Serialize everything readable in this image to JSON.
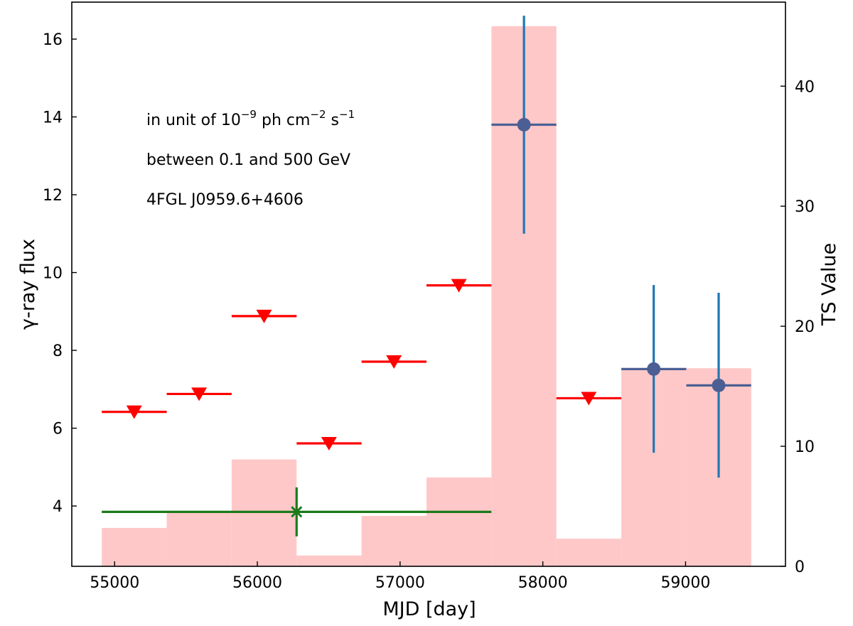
{
  "chart_data": {
    "type": "bar",
    "x_axis": {
      "label": "MJD [day]",
      "range": [
        54700,
        59700
      ],
      "ticks": [
        55000,
        56000,
        57000,
        58000,
        59000
      ],
      "tick_labels": [
        "55000",
        "56000",
        "57000",
        "58000",
        "59000"
      ]
    },
    "y_axis_left": {
      "label": "γ-ray flux",
      "range": [
        2.45,
        16.95
      ],
      "ticks": [
        4,
        6,
        8,
        10,
        12,
        14,
        16
      ],
      "tick_labels": [
        "4",
        "6",
        "8",
        "10",
        "12",
        "14",
        "16"
      ]
    },
    "y_axis_right": {
      "label": "TS Value",
      "range": [
        0,
        47
      ],
      "ticks": [
        0,
        10,
        20,
        30,
        40
      ],
      "tick_labels": [
        "0",
        "10",
        "20",
        "30",
        "40"
      ]
    },
    "annotations": [
      {
        "text_main": "in unit of 10",
        "exp1": "−9",
        "text_mid": " ph cm",
        "exp2": "−2",
        "text_mid2": " s",
        "exp3": "−1"
      },
      {
        "text": "between 0.1 and 500 GeV"
      },
      {
        "text": "4FGL J0959.6+4606"
      }
    ],
    "ts_bars": {
      "axis": "right",
      "color": "#ffc8c8",
      "bins": [
        {
          "x_start": 54910,
          "x_end": 55365,
          "ts": 3.2
        },
        {
          "x_start": 55365,
          "x_end": 55820,
          "ts": 4.6
        },
        {
          "x_start": 55820,
          "x_end": 56275,
          "ts": 8.9
        },
        {
          "x_start": 56275,
          "x_end": 56730,
          "ts": 0.9
        },
        {
          "x_start": 56730,
          "x_end": 57185,
          "ts": 4.2
        },
        {
          "x_start": 57185,
          "x_end": 57640,
          "ts": 7.4
        },
        {
          "x_start": 57640,
          "x_end": 58095,
          "ts": 45.0
        },
        {
          "x_start": 58095,
          "x_end": 58550,
          "ts": 2.3
        },
        {
          "x_start": 58550,
          "x_end": 59005,
          "ts": 16.5
        },
        {
          "x_start": 59005,
          "x_end": 59460,
          "ts": 16.5
        }
      ]
    },
    "upper_limits": {
      "axis": "left",
      "color": "#ff0000",
      "points": [
        {
          "x": 55137,
          "x_start": 54910,
          "x_end": 55365,
          "y": 6.42
        },
        {
          "x": 55592,
          "x_start": 55365,
          "x_end": 55820,
          "y": 6.88
        },
        {
          "x": 56047,
          "x_start": 55820,
          "x_end": 56275,
          "y": 8.88
        },
        {
          "x": 56502,
          "x_start": 56275,
          "x_end": 56730,
          "y": 5.61
        },
        {
          "x": 56957,
          "x_start": 56730,
          "x_end": 57185,
          "y": 7.71
        },
        {
          "x": 57412,
          "x_start": 57185,
          "x_end": 57640,
          "y": 9.67
        },
        {
          "x": 58322,
          "x_start": 58095,
          "x_end": 58550,
          "y": 6.77
        }
      ]
    },
    "detections": {
      "axis": "left",
      "marker_color": "#4b5f94",
      "bar_color": "#1f77b4",
      "points": [
        {
          "x": 57868,
          "x_start": 57640,
          "x_end": 58095,
          "y": 13.8,
          "y_low": 11.0,
          "y_high": 16.6
        },
        {
          "x": 58777,
          "x_start": 58550,
          "x_end": 59005,
          "y": 7.52,
          "y_low": 5.37,
          "y_high": 9.68
        },
        {
          "x": 59232,
          "x_start": 59005,
          "x_end": 59460,
          "y": 7.1,
          "y_low": 4.73,
          "y_high": 9.48
        }
      ]
    },
    "combined": {
      "axis": "left",
      "color": "#1a7a1a",
      "x": 56275,
      "x_start": 54910,
      "x_end": 57640,
      "y": 3.85,
      "y_low": 3.22,
      "y_high": 4.48
    }
  }
}
